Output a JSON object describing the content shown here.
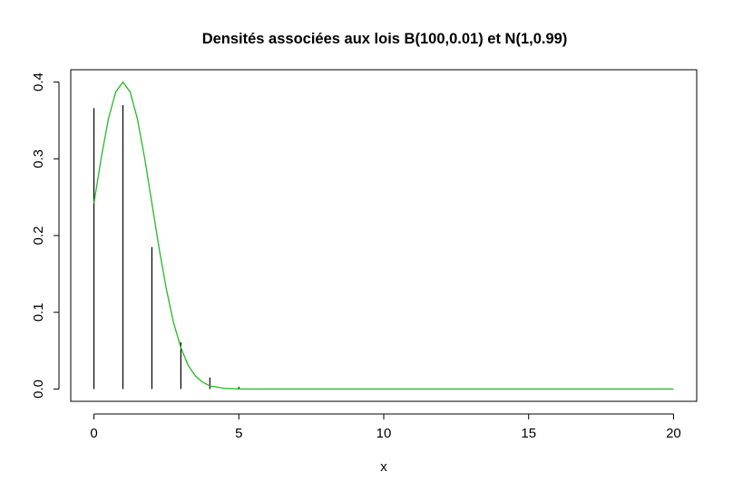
{
  "chart_data": {
    "type": "line",
    "title": "Densités associées aux lois B(100,0.01) et N(1,0.99)",
    "xlabel": "x",
    "ylabel": "",
    "xlim": [
      -0.8,
      20.8
    ],
    "ylim": [
      -0.016,
      0.416
    ],
    "x_ticks": [
      0,
      5,
      10,
      15,
      20
    ],
    "x_tick_labels": [
      "0",
      "5",
      "10",
      "15",
      "20"
    ],
    "y_ticks": [
      0.0,
      0.1,
      0.2,
      0.3,
      0.4
    ],
    "y_tick_labels": [
      "0.0",
      "0.1",
      "0.2",
      "0.3",
      "0.4"
    ],
    "grid": false,
    "legend": "none",
    "series": [
      {
        "kind": "spikes",
        "color": "#000000",
        "x": [
          0,
          1,
          2,
          3,
          4,
          5,
          6,
          7,
          8,
          9,
          10,
          11,
          12,
          13,
          14,
          15,
          16,
          17,
          18,
          19,
          20
        ],
        "values": [
          0.366,
          0.37,
          0.185,
          0.061,
          0.015,
          0.003,
          0.0005,
          0.0001,
          0,
          0,
          0,
          0,
          0,
          0,
          0,
          0,
          0,
          0,
          0,
          0,
          0
        ]
      },
      {
        "kind": "line",
        "color": "#22bb22",
        "x": [
          0,
          0.25,
          0.5,
          0.75,
          1,
          1.25,
          1.5,
          1.75,
          2,
          2.25,
          2.5,
          2.75,
          3,
          3.25,
          3.5,
          3.75,
          4,
          4.5,
          5,
          6,
          7,
          8,
          10,
          12,
          15,
          20
        ],
        "values": [
          0.242,
          0.301,
          0.352,
          0.387,
          0.4,
          0.387,
          0.352,
          0.301,
          0.242,
          0.183,
          0.13,
          0.086,
          0.054,
          0.031,
          0.017,
          0.009,
          0.004,
          0.001,
          0.0001,
          0,
          0,
          0,
          0,
          0,
          0,
          0
        ]
      }
    ]
  }
}
